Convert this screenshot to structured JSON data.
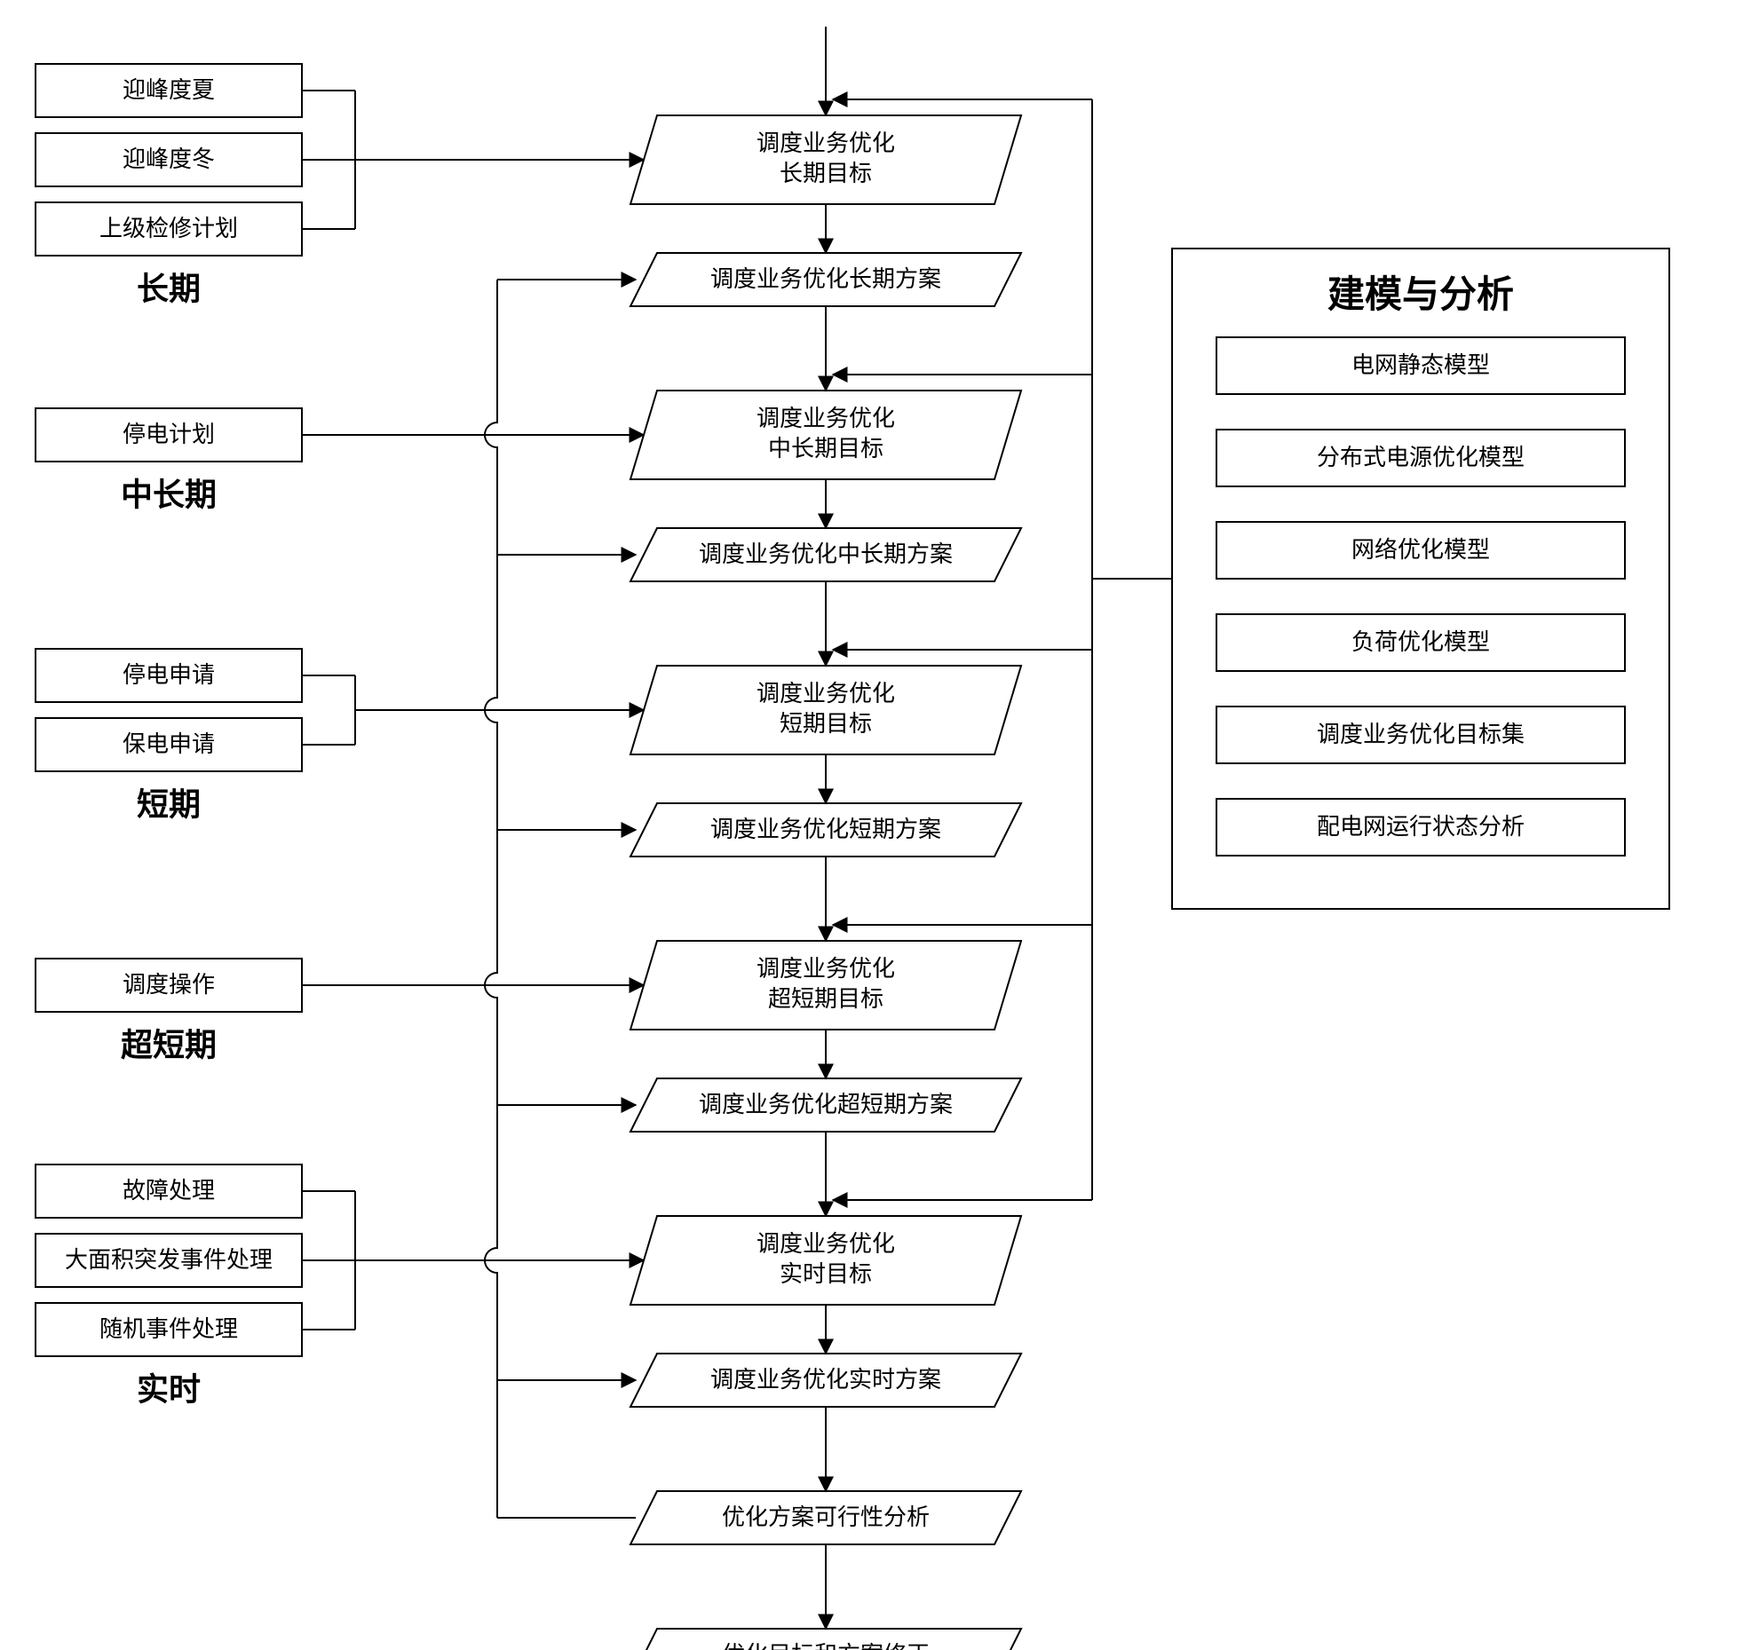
{
  "diagram": {
    "type": "flowchart",
    "background_color": "#ffffff",
    "stroke_color": "#000000",
    "stroke_width": 2,
    "font_family_box": "SimSun",
    "font_family_label": "SimHei",
    "box_fontsize": 26,
    "label_fontsize": 36,
    "title_fontsize": 42,
    "rect_w": 300,
    "rect_h": 60,
    "para_w": 440,
    "para_tall_h": 100,
    "para_short_h": 60,
    "para_skew": 30,
    "arrow_size": 12,
    "left_groups": [
      {
        "label": "长期",
        "items": [
          "迎峰度夏",
          "迎峰度冬",
          "上级检修计划"
        ]
      },
      {
        "label": "中长期",
        "items": [
          "停电计划"
        ]
      },
      {
        "label": "短期",
        "items": [
          "停电申请",
          "保电申请"
        ]
      },
      {
        "label": "超短期",
        "items": [
          "调度操作"
        ]
      },
      {
        "label": "实时",
        "items": [
          "故障处理",
          "大面积突发事件处理",
          "随机事件处理"
        ]
      }
    ],
    "center_sequence": [
      {
        "kind": "tall",
        "lines": [
          "调度业务优化",
          "长期目标"
        ]
      },
      {
        "kind": "short",
        "lines": [
          "调度业务优化长期方案"
        ]
      },
      {
        "kind": "tall",
        "lines": [
          "调度业务优化",
          "中长期目标"
        ]
      },
      {
        "kind": "short",
        "lines": [
          "调度业务优化中长期方案"
        ]
      },
      {
        "kind": "tall",
        "lines": [
          "调度业务优化",
          "短期目标"
        ]
      },
      {
        "kind": "short",
        "lines": [
          "调度业务优化短期方案"
        ]
      },
      {
        "kind": "tall",
        "lines": [
          "调度业务优化",
          "超短期目标"
        ]
      },
      {
        "kind": "short",
        "lines": [
          "调度业务优化超短期方案"
        ]
      },
      {
        "kind": "tall",
        "lines": [
          "调度业务优化",
          "实时目标"
        ]
      },
      {
        "kind": "short",
        "lines": [
          "调度业务优化实时方案"
        ]
      },
      {
        "kind": "short",
        "lines": [
          "优化方案可行性分析"
        ]
      },
      {
        "kind": "short",
        "lines": [
          "优化目标和方案修正"
        ]
      }
    ],
    "right_panel": {
      "title": "建模与分析",
      "items": [
        "电网静态模型",
        "分布式电源优化模型",
        "网络优化模型",
        "负荷优化模型",
        "调度业务优化目标集",
        "配电网运行状态分析"
      ]
    },
    "layout_notes": "Left input groups feed into tall parallelogram goal nodes; short parallelogram plan nodes follow each goal; right panel feeds back into each goal node; feasibility analysis loops back to all plan nodes via left-side bus with jump-overs."
  }
}
